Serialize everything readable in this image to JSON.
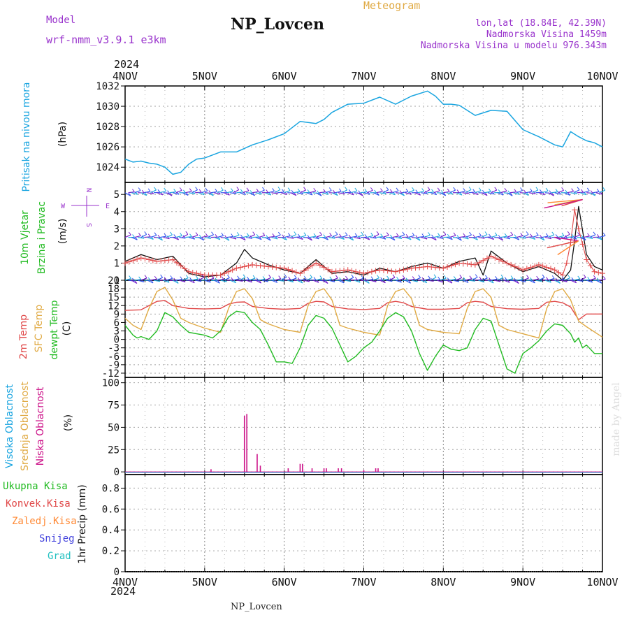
{
  "header": {
    "model_label": "Model",
    "model_name": "wrf-nmm_v3.9.1 e3km",
    "station": "NP_Lovcen",
    "product": "Meteogram",
    "lonlat": "lon,lat (18.84E, 42.39N)",
    "elevation": "Nadmorska Visina 1459m",
    "model_elevation": "Nadmorska Visina u modelu 976.343m",
    "year": "2024",
    "watermark": "made by Angel",
    "footer_station": "NP_Lovcen"
  },
  "colors": {
    "pressure": "#1aa5e0",
    "wind_speed": "#e04848",
    "gust": "#111111",
    "temp_2m": "#e04848",
    "sfc_temp": "#e0aa44",
    "dewpoint": "#22bb22",
    "high_cloud": "#1aa5e0",
    "mid_cloud": "#e0aa44",
    "low_cloud": "#cc1188",
    "total_precip": "#22bb22",
    "conv_precip": "#e04848",
    "freezing_precip": "#ff8833",
    "snow": "#4444dd",
    "graupel": "#22c0c0",
    "label_purple": "#9933cc"
  },
  "chart_data": [
    {
      "type": "line",
      "panel": "pressure",
      "xlabels": [
        "4NOV",
        "5NOV",
        "6NOV",
        "7NOV",
        "8NOV",
        "9NOV",
        "10NOV"
      ],
      "ylabel_rotated": "Pritisak na nivou mora",
      "unit": "(hPa)",
      "ylim": [
        1022.5,
        1032
      ],
      "yticks": [
        "1024",
        "1026",
        "1028",
        "1030",
        "1032"
      ],
      "grid": true,
      "series": [
        {
          "color": "#1aa5e0",
          "x": [
            0,
            0.1,
            0.2,
            0.3,
            0.4,
            0.5,
            0.6,
            0.7,
            0.8,
            0.9,
            1.0,
            1.2,
            1.4,
            1.6,
            1.8,
            2.0,
            2.2,
            2.4,
            2.5,
            2.6,
            2.8,
            3.0,
            3.2,
            3.4,
            3.6,
            3.8,
            3.9,
            4.0,
            4.1,
            4.2,
            4.4,
            4.6,
            4.8,
            5.0,
            5.2,
            5.4,
            5.5,
            5.6,
            5.7,
            5.8,
            5.9,
            6.0
          ],
          "y": [
            1024.8,
            1024.5,
            1024.6,
            1024.4,
            1024.3,
            1024.0,
            1023.3,
            1023.5,
            1024.3,
            1024.8,
            1024.9,
            1025.5,
            1025.5,
            1026.2,
            1026.7,
            1027.3,
            1028.5,
            1028.3,
            1028.7,
            1029.4,
            1030.2,
            1030.3,
            1030.9,
            1030.2,
            1031.0,
            1031.5,
            1031.0,
            1030.2,
            1030.2,
            1030.1,
            1029.1,
            1029.6,
            1029.5,
            1027.7,
            1027.0,
            1026.2,
            1026.0,
            1027.5,
            1027.0,
            1026.6,
            1026.4,
            1026.0
          ]
        }
      ]
    },
    {
      "type": "line",
      "panel": "wind",
      "xlabels": [
        "4NOV",
        "5NOV",
        "6NOV",
        "7NOV",
        "8NOV",
        "9NOV",
        "10NOV"
      ],
      "ylabel_rotated": [
        "10m Vjetar",
        "Brzina i Pravac"
      ],
      "unit": "(m/s)",
      "compass": [
        "N",
        "W",
        "E",
        "S"
      ],
      "ylim": [
        0,
        5.7
      ],
      "yticks": [
        "0",
        "1",
        "2",
        "3",
        "4",
        "5"
      ],
      "grid": true,
      "series": [
        {
          "name": "speed",
          "color": "#e04848",
          "x": [
            0,
            0.2,
            0.4,
            0.6,
            0.8,
            1.0,
            1.2,
            1.4,
            1.6,
            1.8,
            2.0,
            2.2,
            2.4,
            2.6,
            2.8,
            3.0,
            3.2,
            3.4,
            3.6,
            3.8,
            4.0,
            4.2,
            4.4,
            4.6,
            4.8,
            5.0,
            5.2,
            5.4,
            5.5,
            5.55,
            5.6,
            5.65,
            5.7,
            5.8,
            5.9,
            6.0
          ],
          "y": [
            1.0,
            1.3,
            1.1,
            1.2,
            0.5,
            0.3,
            0.3,
            0.7,
            0.9,
            0.8,
            0.7,
            0.4,
            1.0,
            0.5,
            0.6,
            0.4,
            0.6,
            0.5,
            0.7,
            0.8,
            0.7,
            1.0,
            0.9,
            1.4,
            1.0,
            0.6,
            0.9,
            0.6,
            0.3,
            1.0,
            2.2,
            4.1,
            3.0,
            1.2,
            0.5,
            0.4
          ]
        },
        {
          "name": "gust",
          "color": "#111111",
          "x": [
            0,
            0.2,
            0.4,
            0.6,
            0.8,
            1.0,
            1.2,
            1.4,
            1.5,
            1.6,
            1.8,
            2.0,
            2.2,
            2.4,
            2.5,
            2.6,
            2.8,
            3.0,
            3.2,
            3.4,
            3.6,
            3.8,
            4.0,
            4.2,
            4.4,
            4.5,
            4.6,
            4.8,
            5.0,
            5.2,
            5.4,
            5.5,
            5.6,
            5.65,
            5.7,
            5.8,
            5.9,
            6.0
          ],
          "y": [
            1.1,
            1.5,
            1.2,
            1.4,
            0.4,
            0.2,
            0.3,
            1.0,
            1.8,
            1.3,
            0.9,
            0.6,
            0.4,
            1.2,
            0.8,
            0.4,
            0.5,
            0.3,
            0.7,
            0.5,
            0.8,
            1.0,
            0.7,
            1.1,
            1.3,
            0.3,
            1.7,
            1.0,
            0.5,
            0.8,
            0.4,
            0.0,
            0.6,
            2.3,
            4.3,
            1.5,
            0.8,
            0.6
          ]
        }
      ],
      "barb_rows": [
        {
          "y": 5.1,
          "colors": [
            "#3355ee",
            "#7722cc",
            "#22aadd"
          ]
        },
        {
          "y": 2.5,
          "colors": [
            "#3355ee",
            "#7722cc",
            "#22aadd"
          ]
        },
        {
          "y": 0.0,
          "colors": [
            "#3355ee",
            "#7722cc",
            "#22aadd"
          ]
        }
      ]
    },
    {
      "type": "line",
      "panel": "temperature",
      "xlabels": [
        "4NOV",
        "5NOV",
        "6NOV",
        "7NOV",
        "8NOV",
        "9NOV",
        "10NOV"
      ],
      "ylabel_rotated": [
        "2m Temp",
        "SFC Temp",
        "dewpt Temp"
      ],
      "unit": "(C)",
      "ylim": [
        -13.5,
        21
      ],
      "yticks": [
        "21",
        "18",
        "15",
        "12",
        "9",
        "6",
        "3",
        "0",
        "-3",
        "-6",
        "-9",
        "-12"
      ],
      "grid": true,
      "series": [
        {
          "name": "2m Temp",
          "color": "#e04848",
          "x": [
            0,
            0.1,
            0.2,
            0.3,
            0.4,
            0.5,
            0.6,
            0.8,
            1.0,
            1.2,
            1.3,
            1.4,
            1.5,
            1.6,
            1.8,
            2.0,
            2.2,
            2.3,
            2.4,
            2.5,
            2.6,
            2.8,
            3.0,
            3.2,
            3.3,
            3.4,
            3.5,
            3.6,
            3.8,
            4.0,
            4.2,
            4.3,
            4.4,
            4.5,
            4.6,
            4.8,
            5.0,
            5.2,
            5.3,
            5.4,
            5.5,
            5.6,
            5.7,
            5.8,
            6.0
          ],
          "y": [
            10.3,
            10.4,
            10.5,
            12.0,
            13.5,
            13.8,
            12.0,
            11.0,
            10.8,
            11.0,
            12.5,
            13.2,
            13.3,
            11.7,
            11.0,
            10.7,
            11.0,
            12.8,
            13.5,
            13.3,
            11.7,
            10.8,
            10.6,
            11.0,
            13.0,
            13.5,
            13.0,
            11.7,
            10.7,
            10.7,
            11.0,
            13.0,
            13.5,
            13.2,
            11.7,
            10.9,
            10.7,
            11.0,
            13.2,
            13.5,
            13.0,
            11.5,
            7.0,
            9.0,
            9.0
          ]
        },
        {
          "name": "SFC Temp",
          "color": "#e0aa44",
          "x": [
            0,
            0.1,
            0.2,
            0.3,
            0.4,
            0.5,
            0.6,
            0.7,
            0.8,
            0.9,
            1.0,
            1.2,
            1.3,
            1.4,
            1.5,
            1.6,
            1.7,
            1.8,
            2.0,
            2.2,
            2.3,
            2.4,
            2.5,
            2.6,
            2.7,
            2.8,
            3.0,
            3.2,
            3.3,
            3.4,
            3.5,
            3.6,
            3.7,
            3.8,
            4.0,
            4.2,
            4.3,
            4.4,
            4.5,
            4.6,
            4.7,
            4.8,
            5.0,
            5.2,
            5.3,
            5.4,
            5.5,
            5.6,
            5.7,
            5.8,
            6.0
          ],
          "y": [
            7.5,
            5.0,
            3.5,
            11.0,
            17.0,
            18.5,
            14.0,
            7.5,
            6.0,
            5.0,
            4.0,
            2.5,
            11.0,
            17.0,
            18.0,
            14.5,
            7.0,
            5.5,
            3.5,
            2.5,
            12.0,
            17.0,
            18.0,
            14.0,
            5.0,
            4.0,
            2.5,
            1.5,
            12.0,
            17.0,
            18.0,
            14.5,
            5.0,
            3.5,
            2.5,
            2.0,
            11.0,
            17.0,
            18.0,
            15.0,
            5.0,
            3.5,
            2.0,
            0.5,
            11.0,
            17.0,
            18.0,
            14.0,
            6.5,
            4.5,
            0.8
          ]
        },
        {
          "name": "dewpt Temp",
          "color": "#22bb22",
          "x": [
            0,
            0.1,
            0.15,
            0.2,
            0.3,
            0.4,
            0.5,
            0.6,
            0.7,
            0.8,
            0.9,
            1.0,
            1.1,
            1.2,
            1.3,
            1.4,
            1.5,
            1.6,
            1.7,
            1.8,
            1.9,
            2.0,
            2.1,
            2.2,
            2.3,
            2.4,
            2.5,
            2.6,
            2.7,
            2.8,
            2.9,
            3.0,
            3.1,
            3.2,
            3.3,
            3.4,
            3.5,
            3.6,
            3.7,
            3.8,
            3.9,
            4.0,
            4.1,
            4.2,
            4.3,
            4.4,
            4.5,
            4.6,
            4.7,
            4.8,
            4.9,
            5.0,
            5.1,
            5.2,
            5.3,
            5.4,
            5.5,
            5.6,
            5.65,
            5.7,
            5.75,
            5.8,
            5.9,
            6.0
          ],
          "y": [
            5.0,
            1.5,
            0.5,
            1.0,
            0.0,
            3.0,
            9.5,
            8.0,
            5.0,
            2.5,
            2.0,
            1.5,
            0.5,
            3.0,
            8.0,
            10.0,
            9.5,
            6.0,
            3.5,
            -2.0,
            -8.0,
            -8.0,
            -8.5,
            -3.0,
            5.0,
            8.5,
            7.5,
            4.0,
            -2.0,
            -8.0,
            -6.0,
            -3.0,
            -1.0,
            3.0,
            7.5,
            9.5,
            8.0,
            3.0,
            -5.0,
            -11.0,
            -6.0,
            -2.0,
            -3.5,
            -4.0,
            -3.0,
            3.5,
            7.5,
            6.5,
            -2.0,
            -10.5,
            -12.0,
            -5.0,
            -3.0,
            -0.5,
            3.0,
            5.5,
            5.0,
            2.0,
            -1.0,
            0.5,
            -3.0,
            -2.0,
            -5.0,
            -5.0
          ]
        }
      ]
    },
    {
      "type": "bar",
      "panel": "cloud",
      "xlabels": [
        "4NOV",
        "5NOV",
        "6NOV",
        "7NOV",
        "8NOV",
        "9NOV",
        "10NOV"
      ],
      "ylabel_rotated": [
        "Visoka Oblacnost",
        "Srednja Oblacnost",
        "Niska Oblacnost"
      ],
      "unit": "(%)",
      "ylim": [
        -3,
        106
      ],
      "yticks": [
        "0",
        "25",
        "50",
        "75",
        "100"
      ],
      "grid": true,
      "series": [
        {
          "name": "Niska Oblacnost",
          "color": "#cc1188",
          "x": [
            1.08,
            1.5,
            1.53,
            1.66,
            1.7,
            2.05,
            2.2,
            2.23,
            2.35,
            2.5,
            2.53,
            2.68,
            2.72,
            3.0,
            3.15,
            3.18
          ],
          "values": [
            3,
            63,
            65,
            20,
            7,
            4,
            9,
            9,
            4,
            4,
            4,
            4,
            4,
            2,
            4,
            4
          ]
        }
      ]
    },
    {
      "type": "bar",
      "panel": "precip",
      "xlabels": [
        "4NOV",
        "5NOV",
        "6NOV",
        "7NOV",
        "8NOV",
        "9NOV",
        "10NOV"
      ],
      "legend": [
        "Ukupna Kisa",
        "Konvek.Kisa",
        "Zaledj.Kisa",
        "Snijeg",
        "Grad"
      ],
      "ylabel_rotated": "1hr Precip (mm)",
      "ylim": [
        0,
        0.93
      ],
      "yticks": [
        "0",
        "0.2",
        "0.4",
        "0.6",
        "0.8"
      ],
      "grid": true,
      "series": []
    }
  ]
}
